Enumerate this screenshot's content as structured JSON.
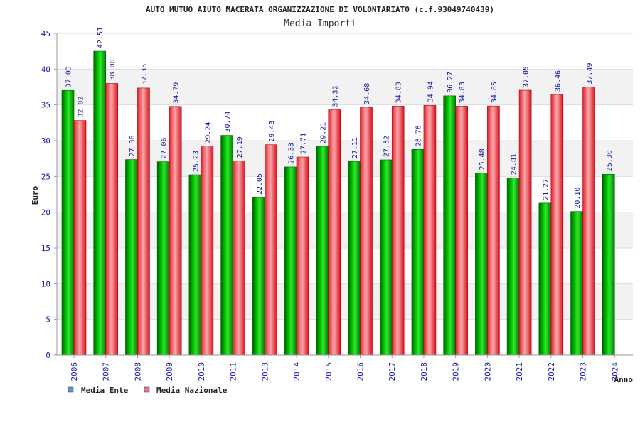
{
  "chart_data": {
    "type": "bar",
    "title": "AUTO MUTUO AIUTO MACERATA ORGANIZZAZIONE DI VOLONTARIATO (c.f.93049740439)",
    "subtitle": "Media Importi",
    "xlabel": "Anno",
    "ylabel": "Euro",
    "ylim": [
      0,
      45
    ],
    "yticks": [
      0,
      5,
      10,
      15,
      20,
      25,
      30,
      35,
      40,
      45
    ],
    "grid": true,
    "legend_position": "bottom-left",
    "categories": [
      "2006",
      "2007",
      "2008",
      "2009",
      "2010",
      "2011",
      "2013",
      "2014",
      "2015",
      "2016",
      "2017",
      "2018",
      "2019",
      "2020",
      "2021",
      "2022",
      "2023",
      "2024"
    ],
    "series": [
      {
        "name": "Media Ente",
        "color": "#00b400",
        "values": [
          37.03,
          42.51,
          27.36,
          27.06,
          25.23,
          30.74,
          22.05,
          26.33,
          29.21,
          27.11,
          27.32,
          28.78,
          36.27,
          25.48,
          24.81,
          21.27,
          20.1,
          25.3
        ],
        "labels": [
          "37.03",
          "42.51",
          "27.36",
          "27.06",
          "25.23",
          "30.74",
          "22.05",
          "26.33",
          "29.21",
          "27.11",
          "27.32",
          "28.78",
          "36.27",
          "25.48",
          "24.81",
          "21.27",
          "20.10",
          "25.30"
        ]
      },
      {
        "name": "Media Nazionale",
        "color": "#e8202a",
        "values": [
          32.82,
          38.0,
          37.36,
          34.79,
          29.24,
          27.19,
          29.43,
          27.71,
          34.32,
          34.68,
          34.83,
          34.94,
          34.83,
          34.85,
          37.05,
          36.46,
          37.49,
          null
        ],
        "labels": [
          "32.82",
          "38.00",
          "37.36",
          "34.79",
          "29.24",
          "27.19",
          "29.43",
          "27.71",
          "34.32",
          "34.68",
          "34.83",
          "34.94",
          "34.83",
          "34.85",
          "37.05",
          "36.46",
          "37.49",
          ""
        ]
      }
    ],
    "legend": [
      {
        "name": "Media Ente",
        "color": "#5b9bd5"
      },
      {
        "name": "Media Nazionale",
        "color": "#d97aa6"
      }
    ]
  }
}
